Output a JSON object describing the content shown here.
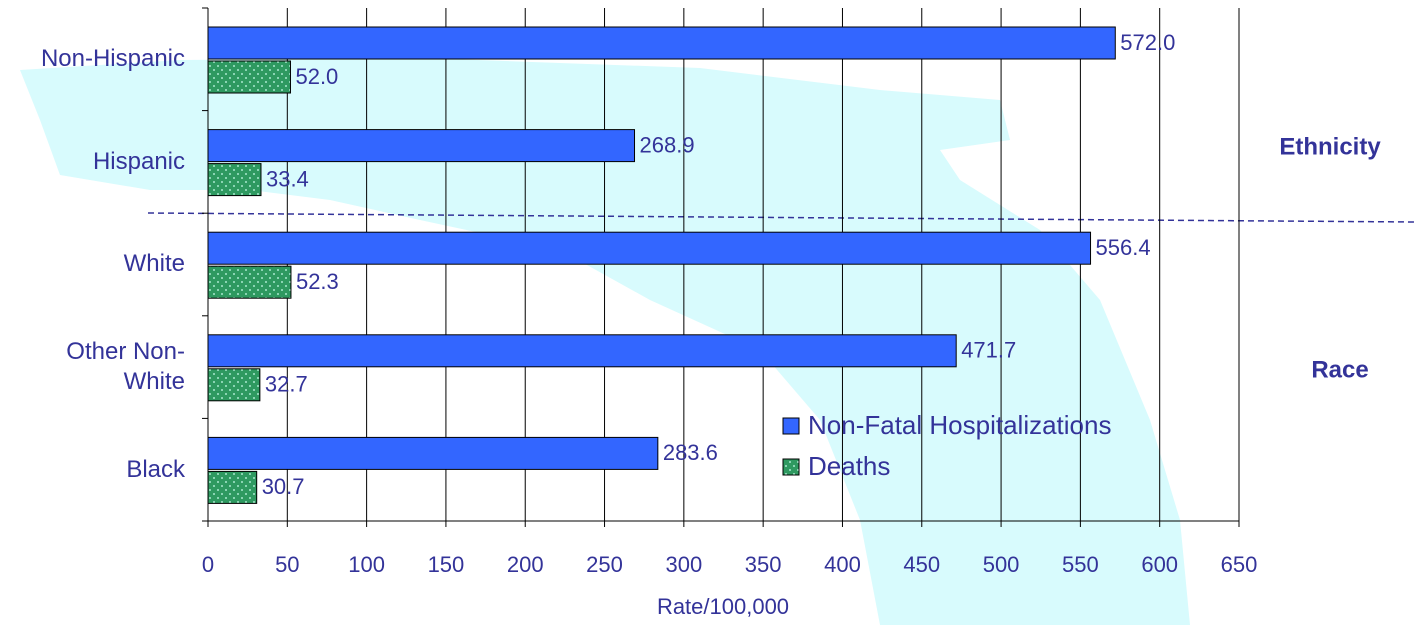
{
  "chart_data": {
    "type": "hbar",
    "categories": [
      "Non-Hispanic",
      "Hispanic",
      "White",
      "Other Non-White",
      "Black"
    ],
    "series": [
      {
        "name": "Non-Fatal Hospitalizations",
        "color": "#3366ff",
        "values": [
          572.0,
          268.9,
          556.4,
          471.7,
          283.6
        ],
        "value_labels": [
          "572.0",
          "268.9",
          "556.4",
          "471.7",
          "283.6"
        ]
      },
      {
        "name": "Deaths",
        "color": "#2e9960",
        "values": [
          52.0,
          33.4,
          52.3,
          32.7,
          30.7
        ],
        "value_labels": [
          "52.0",
          "33.4",
          "52.3",
          "32.7",
          "30.7"
        ]
      }
    ],
    "x_label": "Rate/100,000",
    "annotations": [
      "Ethnicity",
      "Race"
    ],
    "xlim": [
      0,
      650
    ],
    "xticks": [
      0,
      50,
      100,
      150,
      200,
      250,
      300,
      350,
      400,
      450,
      500,
      550,
      600,
      650
    ],
    "grid": true
  }
}
